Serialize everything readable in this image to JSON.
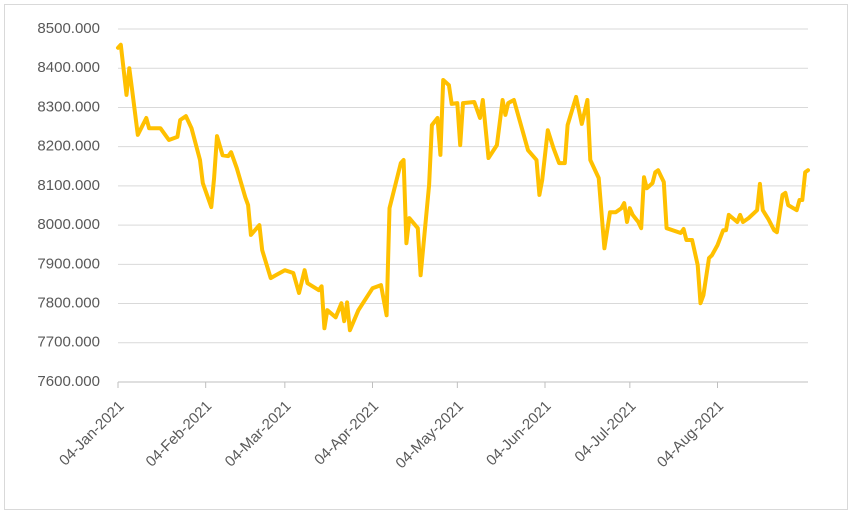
{
  "chart_data": {
    "type": "line",
    "xlim": [
      "2021-01-04",
      "2021-09-05"
    ],
    "xticks": [
      {
        "value": "2021-01-04",
        "label": "04-Jan-2021"
      },
      {
        "value": "2021-02-04",
        "label": "04-Feb-2021"
      },
      {
        "value": "2021-03-04",
        "label": "04-Mar-2021"
      },
      {
        "value": "2021-04-04",
        "label": "04-Apr-2021"
      },
      {
        "value": "2021-05-04",
        "label": "04-May-2021"
      },
      {
        "value": "2021-06-04",
        "label": "04-Jun-2021"
      },
      {
        "value": "2021-07-04",
        "label": "04-Jul-2021"
      },
      {
        "value": "2021-08-04",
        "label": "04-Aug-2021"
      }
    ],
    "ylim": [
      7600,
      8500
    ],
    "yticks": [
      {
        "value": 7600,
        "label": "7600.000"
      },
      {
        "value": 7700,
        "label": "7700.000"
      },
      {
        "value": 7800,
        "label": "7800.000"
      },
      {
        "value": 7900,
        "label": "7900.000"
      },
      {
        "value": 8000,
        "label": "8000.000"
      },
      {
        "value": 8100,
        "label": "8100.000"
      },
      {
        "value": 8200,
        "label": "8200.000"
      },
      {
        "value": 8300,
        "label": "8300.000"
      },
      {
        "value": 8400,
        "label": "8400.000"
      },
      {
        "value": 8500,
        "label": "8500.000"
      }
    ],
    "grid": true,
    "color": "#ffc000",
    "x": [
      "2021-01-04",
      "2021-01-05",
      "2021-01-07",
      "2021-01-08",
      "2021-01-09",
      "2021-01-11",
      "2021-01-14",
      "2021-01-15",
      "2021-01-19",
      "2021-01-22",
      "2021-01-25",
      "2021-01-26",
      "2021-01-28",
      "2021-01-30",
      "2021-02-02",
      "2021-02-03",
      "2021-02-06",
      "2021-02-07",
      "2021-02-08",
      "2021-02-10",
      "2021-02-12",
      "2021-02-13",
      "2021-02-15",
      "2021-02-18",
      "2021-02-19",
      "2021-02-20",
      "2021-02-23",
      "2021-02-24",
      "2021-02-27",
      "2021-03-01",
      "2021-03-04",
      "2021-03-07",
      "2021-03-09",
      "2021-03-11",
      "2021-03-12",
      "2021-03-16",
      "2021-03-17",
      "2021-03-18",
      "2021-03-19",
      "2021-03-22",
      "2021-03-24",
      "2021-03-25",
      "2021-03-26",
      "2021-03-27",
      "2021-03-30",
      "2021-04-04",
      "2021-04-07",
      "2021-04-09",
      "2021-04-10",
      "2021-04-14",
      "2021-04-15",
      "2021-04-16",
      "2021-04-17",
      "2021-04-20",
      "2021-04-21",
      "2021-04-24",
      "2021-04-25",
      "2021-04-27",
      "2021-04-28",
      "2021-04-29",
      "2021-05-01",
      "2021-05-02",
      "2021-05-04",
      "2021-05-05",
      "2021-05-06",
      "2021-05-10",
      "2021-05-12",
      "2021-05-13",
      "2021-05-15",
      "2021-05-18",
      "2021-05-20",
      "2021-05-21",
      "2021-05-22",
      "2021-05-24",
      "2021-05-27",
      "2021-05-29",
      "2021-06-01",
      "2021-06-02",
      "2021-06-03",
      "2021-06-05",
      "2021-06-07",
      "2021-06-09",
      "2021-06-11",
      "2021-06-12",
      "2021-06-15",
      "2021-06-17",
      "2021-06-19",
      "2021-06-20",
      "2021-06-23",
      "2021-06-25",
      "2021-06-27",
      "2021-06-29",
      "2021-07-01",
      "2021-07-02",
      "2021-07-03",
      "2021-07-04",
      "2021-07-05",
      "2021-07-07",
      "2021-07-08",
      "2021-07-09",
      "2021-07-10",
      "2021-07-12",
      "2021-07-13",
      "2021-07-14",
      "2021-07-16",
      "2021-07-17",
      "2021-07-22",
      "2021-07-23",
      "2021-07-24",
      "2021-07-26",
      "2021-07-28",
      "2021-07-29",
      "2021-07-30",
      "2021-08-01",
      "2021-08-02",
      "2021-08-04",
      "2021-08-06",
      "2021-08-07",
      "2021-08-08",
      "2021-08-11",
      "2021-08-12",
      "2021-08-13",
      "2021-08-15",
      "2021-08-18",
      "2021-08-19",
      "2021-08-20",
      "2021-08-22",
      "2021-08-24",
      "2021-08-25",
      "2021-08-27",
      "2021-08-28",
      "2021-08-29",
      "2021-09-01",
      "2021-09-02",
      "2021-09-03",
      "2021-09-04",
      "2021-09-05"
    ],
    "values": [
      8452,
      8460,
      8332,
      8400,
      8345,
      8230,
      8273,
      8247,
      8247,
      8217,
      8225,
      8268,
      8278,
      8247,
      8166,
      8107,
      8046,
      8120,
      8227,
      8178,
      8176,
      8186,
      8145,
      8071,
      8051,
      7975,
      8000,
      7936,
      7865,
      7873,
      7885,
      7878,
      7827,
      7885,
      7852,
      7834,
      7844,
      7737,
      7783,
      7765,
      7801,
      7755,
      7803,
      7732,
      7783,
      7839,
      7847,
      7770,
      8043,
      8158,
      8166,
      7954,
      8018,
      7992,
      7872,
      8102,
      8255,
      8273,
      8179,
      8370,
      8357,
      8309,
      8311,
      8204,
      8311,
      8314,
      8273,
      8319,
      8171,
      8204,
      8319,
      8281,
      8311,
      8319,
      8242,
      8191,
      8166,
      8077,
      8115,
      8242,
      8196,
      8158,
      8158,
      8255,
      8327,
      8258,
      8319,
      8166,
      8120,
      7941,
      8033,
      8033,
      8043,
      8056,
      8008,
      8043,
      8026,
      8008,
      7992,
      8122,
      8094,
      8107,
      8135,
      8140,
      8110,
      7992,
      7980,
      7990,
      7962,
      7962,
      7898,
      7801,
      7821,
      7916,
      7923,
      7949,
      7987,
      7987,
      8026,
      8008,
      8026,
      8008,
      8018,
      8038,
      8105,
      8038,
      8015,
      7987,
      7982,
      8077,
      8082,
      8051,
      8038,
      8064,
      8064,
      8135,
      8140
    ]
  }
}
